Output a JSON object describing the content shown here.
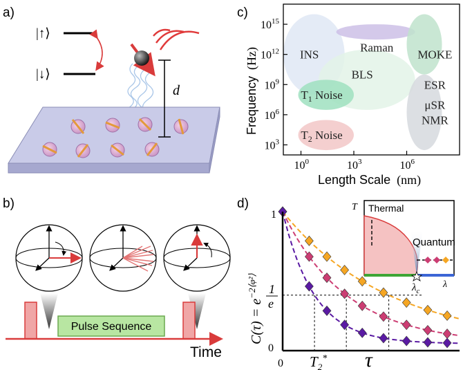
{
  "panels": {
    "a": {
      "label": "a)",
      "ket_up": "|↑⟩",
      "ket_down": "|↓⟩",
      "distance": "d"
    },
    "b": {
      "label": "b)",
      "pulse_sequence": "Pulse Sequence",
      "time": "Time"
    },
    "c": {
      "label": "c)"
    },
    "d": {
      "label": "d)"
    }
  },
  "chart_data": [
    {
      "type": "area",
      "xlabel_main": "Length Scale",
      "xlabel_unit": "(nm)",
      "ylabel_main": "Frequency",
      "ylabel_unit": "(Hz)",
      "x_scale": "log",
      "y_scale": "log",
      "x_ticks": [
        "10^0",
        "10^3",
        "10^6"
      ],
      "y_ticks": [
        "10^3",
        "10^6",
        "10^9",
        "10^12",
        "10^15"
      ],
      "xlim": [
        0.1,
        1000000000
      ],
      "ylim": [
        100,
        100000000000000000
      ],
      "regions": [
        {
          "name": "INS",
          "label": "INS",
          "color": "#dfe8f5",
          "x": [
            0.1,
            300
          ],
          "y": [
            100000000,
            10000000000000000
          ],
          "label_at": [
            3,
            1000000000000
          ]
        },
        {
          "name": "Raman",
          "label": "Raman",
          "color": "#cdbfe6",
          "x": [
            100,
            3000000
          ],
          "y": [
            30000000000000,
            1000000000000000
          ],
          "label_at": [
            20000,
            5000000000000
          ]
        },
        {
          "name": "MOKE",
          "label": "MOKE",
          "color": "#bfe3cc",
          "x": [
            1000000,
            100000000
          ],
          "y": [
            10000000000,
            10000000000000000
          ],
          "label_at": [
            40000000,
            1000000000000
          ]
        },
        {
          "name": "BLS",
          "label": "BLS",
          "color": "#e3f3e8",
          "x": [
            10,
            3000000
          ],
          "y": [
            3000000,
            3000000000000
          ],
          "label_at": [
            3000,
            10000000000
          ]
        },
        {
          "name": "T1 Noise",
          "label": "T",
          "sub": "1",
          "suffix": " Noise",
          "color": "#9fe0bf",
          "x": [
            0.7,
            1000
          ],
          "y": [
            3000000,
            3000000000
          ],
          "label_at": [
            15,
            100000000
          ]
        },
        {
          "name": "T2 Noise",
          "label": "T",
          "sub": "2",
          "suffix": " Noise",
          "color": "#f2c7c7",
          "x": [
            0.7,
            1000
          ],
          "y": [
            300,
            300000
          ],
          "label_at": [
            15,
            10000
          ]
        },
        {
          "name": "ESR",
          "label": "ESR",
          "color": "#d6d9de",
          "x": [
            1000000,
            100000000
          ],
          "y": [
            300,
            10000000000
          ],
          "label_at": [
            40000000,
            1000000000
          ]
        },
        {
          "name": "muSR",
          "label": "μSR",
          "color": "#d6d9de",
          "x": [
            1000000,
            100000000
          ],
          "y": [
            300,
            10000000000
          ],
          "label_at": [
            40000000,
            10000000
          ]
        },
        {
          "name": "NMR",
          "label": "NMR",
          "color": "#d6d9de",
          "x": [
            1000000,
            100000000
          ],
          "y": [
            300,
            10000000000
          ],
          "label_at": [
            40000000,
            300000
          ]
        }
      ]
    },
    {
      "type": "scatter",
      "ylabel": "C(τ) = e^{−2⟨φ²⟩}",
      "xlabel": "τ",
      "x_tick_zero": "0",
      "x_tick_t2": "T",
      "x_tick_t2_sub": "2",
      "x_tick_t2_sup": "*",
      "y_ticks": [
        "1",
        "1/e",
        "0"
      ],
      "xlim": [
        0,
        10
      ],
      "ylim": [
        0,
        1
      ],
      "series": [
        {
          "name": "orange",
          "color": "#f5a623",
          "decay": 6.0,
          "x": [
            0,
            1.5,
            2.5,
            3.5,
            4.5,
            5.7,
            7.0,
            8.2,
            9.3
          ]
        },
        {
          "name": "pink",
          "color": "#cc3d73",
          "decay": 3.6,
          "x": [
            0,
            1.5,
            2.5,
            3.5,
            4.5,
            5.7,
            7.0,
            8.2,
            9.3
          ]
        },
        {
          "name": "purple",
          "color": "#5a1aa3",
          "decay": 1.8,
          "x": [
            0,
            1.5,
            2.5,
            3.5,
            4.5,
            5.7,
            7.0,
            8.2,
            9.3
          ]
        }
      ],
      "inset": {
        "y_axis": "T",
        "x_axis": "λ",
        "critical": "λ",
        "critical_sub": "c",
        "thermal": "Thermal",
        "quantum": "Quantum"
      }
    }
  ],
  "colors": {
    "red": "#d93b3b",
    "slab": "#c9cbe8",
    "slab_side": "#a6a8cf",
    "ring": "#e03a3a"
  }
}
